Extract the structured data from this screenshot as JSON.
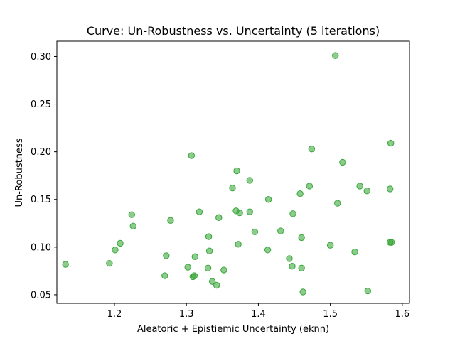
{
  "chart_data": {
    "type": "scatter",
    "title": "Curve: Un-Robustness vs. Uncertainty (5 iterations)",
    "xlabel": "Aleatoric + Epistiemic Uncertainty (eknn)",
    "ylabel": "Un-Robustness",
    "xlim": [
      1.12,
      1.61
    ],
    "ylim": [
      0.041,
      0.316
    ],
    "xticks": [
      1.2,
      1.3,
      1.4,
      1.5,
      1.6
    ],
    "xtick_labels": [
      "1.2",
      "1.3",
      "1.4",
      "1.5",
      "1.6"
    ],
    "yticks": [
      0.05,
      0.1,
      0.15,
      0.2,
      0.25,
      0.3
    ],
    "ytick_labels": [
      "0.05",
      "0.10",
      "0.15",
      "0.20",
      "0.25",
      "0.30"
    ],
    "grid": false,
    "marker_color": "#2ca02c",
    "marker_alpha": 0.55,
    "points": [
      {
        "x": 1.132,
        "y": 0.082
      },
      {
        "x": 1.193,
        "y": 0.083
      },
      {
        "x": 1.201,
        "y": 0.097
      },
      {
        "x": 1.208,
        "y": 0.104
      },
      {
        "x": 1.224,
        "y": 0.134
      },
      {
        "x": 1.226,
        "y": 0.122
      },
      {
        "x": 1.27,
        "y": 0.07
      },
      {
        "x": 1.272,
        "y": 0.091
      },
      {
        "x": 1.278,
        "y": 0.128
      },
      {
        "x": 1.302,
        "y": 0.079
      },
      {
        "x": 1.307,
        "y": 0.196
      },
      {
        "x": 1.309,
        "y": 0.069
      },
      {
        "x": 1.311,
        "y": 0.07
      },
      {
        "x": 1.312,
        "y": 0.09
      },
      {
        "x": 1.318,
        "y": 0.137
      },
      {
        "x": 1.33,
        "y": 0.078
      },
      {
        "x": 1.331,
        "y": 0.111
      },
      {
        "x": 1.332,
        "y": 0.096
      },
      {
        "x": 1.336,
        "y": 0.064
      },
      {
        "x": 1.342,
        "y": 0.06
      },
      {
        "x": 1.345,
        "y": 0.131
      },
      {
        "x": 1.352,
        "y": 0.076
      },
      {
        "x": 1.364,
        "y": 0.162
      },
      {
        "x": 1.369,
        "y": 0.138
      },
      {
        "x": 1.37,
        "y": 0.18
      },
      {
        "x": 1.372,
        "y": 0.103
      },
      {
        "x": 1.374,
        "y": 0.136
      },
      {
        "x": 1.388,
        "y": 0.137
      },
      {
        "x": 1.388,
        "y": 0.17
      },
      {
        "x": 1.395,
        "y": 0.116
      },
      {
        "x": 1.413,
        "y": 0.097
      },
      {
        "x": 1.414,
        "y": 0.15
      },
      {
        "x": 1.431,
        "y": 0.117
      },
      {
        "x": 1.443,
        "y": 0.088
      },
      {
        "x": 1.447,
        "y": 0.08
      },
      {
        "x": 1.448,
        "y": 0.135
      },
      {
        "x": 1.458,
        "y": 0.156
      },
      {
        "x": 1.46,
        "y": 0.078
      },
      {
        "x": 1.46,
        "y": 0.11
      },
      {
        "x": 1.462,
        "y": 0.053
      },
      {
        "x": 1.471,
        "y": 0.164
      },
      {
        "x": 1.474,
        "y": 0.203
      },
      {
        "x": 1.5,
        "y": 0.102
      },
      {
        "x": 1.507,
        "y": 0.301
      },
      {
        "x": 1.51,
        "y": 0.146
      },
      {
        "x": 1.517,
        "y": 0.189
      },
      {
        "x": 1.534,
        "y": 0.095
      },
      {
        "x": 1.541,
        "y": 0.164
      },
      {
        "x": 1.551,
        "y": 0.159
      },
      {
        "x": 1.552,
        "y": 0.054
      },
      {
        "x": 1.583,
        "y": 0.161
      },
      {
        "x": 1.583,
        "y": 0.105
      },
      {
        "x": 1.584,
        "y": 0.209
      },
      {
        "x": 1.585,
        "y": 0.105
      }
    ]
  }
}
